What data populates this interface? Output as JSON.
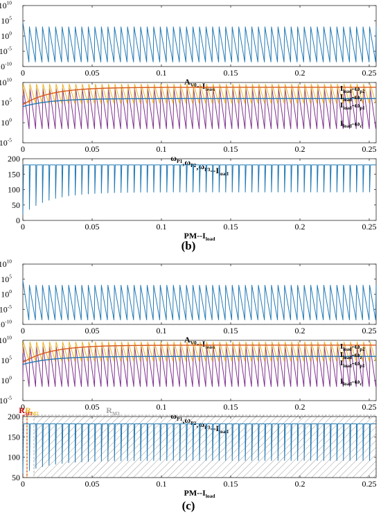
{
  "figure": {
    "panel_b_label": "(b)",
    "panel_c_label": "(c)"
  },
  "chart_data": [
    {
      "id": "b1",
      "type": "line",
      "panel": "b",
      "title": "",
      "xlabel_main": "A",
      "xlabel_sub": "V0",
      "xlabel_rest": "--I",
      "xlabel_rest_sub": "load",
      "xlim": [
        0,
        0.255
      ],
      "ylim_exp": [
        -10,
        10
      ],
      "log_scale": true,
      "x_ticks": [
        "0",
        "0.05",
        "0.1",
        "0.15",
        "0.2",
        "0.25"
      ],
      "y_ticks": [
        "10^-10",
        "10^-5",
        "10^0",
        "10^5",
        "10^10"
      ],
      "series": [
        {
          "name": "",
          "color": "#1f77b4",
          "teeth": 54,
          "start_peak_exp": 4.5,
          "peak_exp": 3,
          "min_exp": -8.5,
          "floor_end_exp": -8
        }
      ]
    },
    {
      "id": "b2",
      "type": "line",
      "panel": "b",
      "title": "",
      "xlabel_main": "ω",
      "xlabel_sub_parts": [
        "P1",
        "P2",
        "P3"
      ],
      "xlabel_rest": "--I",
      "xlabel_rest_sub": "load",
      "xlim": [
        0,
        0.255
      ],
      "ylim_exp": [
        -5,
        10
      ],
      "log_scale": true,
      "x_ticks": [
        "0",
        "0.05",
        "0.1",
        "0.15",
        "0.2",
        "0.25"
      ],
      "y_ticks": [
        "10^-5",
        "10^0",
        "10^5",
        "10^10"
      ],
      "legend": [
        {
          "main": "I",
          "sub": "load",
          "rest": "-ω",
          "rest_sub": "p2"
        },
        {
          "main": "I",
          "sub": "load",
          "rest": "-ω",
          "rest_sub": "z"
        },
        {
          "main": "I",
          "sub": "load",
          "rest": "-ω",
          "rest_sub": "p1"
        },
        {
          "main": "I",
          "sub": "load",
          "rest": "-ω",
          "rest_sub": "c"
        }
      ],
      "series": [
        {
          "name": "",
          "color": "#7e2f8e",
          "role": "omega_c",
          "teeth": 54,
          "peak_exp": 8.5,
          "min_exp": -1.5
        },
        {
          "name": "",
          "color": "#edb120",
          "role": "omega_p2",
          "teeth": 54,
          "peak_exp": 9.6,
          "min_exp": 4.8
        },
        {
          "name": "",
          "color": "#1f77b4",
          "role": "omega_p1",
          "start_exp": 4.0,
          "end_exp": 6.0
        },
        {
          "name": "",
          "color": "#d95319",
          "role": "omega_z",
          "start_exp": 4.5,
          "end_exp": 8.8
        }
      ]
    },
    {
      "id": "b3",
      "type": "line",
      "panel": "b",
      "title": "",
      "xlabel_main": "PM--I",
      "xlabel_sub": "load",
      "xlim": [
        0,
        0.255
      ],
      "ylim": [
        0,
        200
      ],
      "x_ticks": [
        "0",
        "0.05",
        "0.1",
        "0.15",
        "0.2",
        "0.25"
      ],
      "y_ticks": [
        "0",
        "50",
        "100",
        "150",
        "200"
      ],
      "series": [
        {
          "name": "",
          "color": "#1f77b4",
          "teeth": 54,
          "top": 180,
          "dip_start": 20,
          "dip_end": 92
        }
      ]
    },
    {
      "id": "c1",
      "type": "line",
      "panel": "c",
      "title": "",
      "xlabel_main": "A",
      "xlabel_sub": "V0",
      "xlabel_rest": "--I",
      "xlabel_rest_sub": "load",
      "xlim": [
        0,
        0.255
      ],
      "ylim_exp": [
        -10,
        10
      ],
      "log_scale": true,
      "x_ticks": [
        "0",
        "0.05",
        "0.1",
        "0.15",
        "0.2",
        "0.25"
      ],
      "y_ticks": [
        "10^-10",
        "10^-5",
        "10^0",
        "10^5",
        "10^10"
      ],
      "series": [
        {
          "name": "",
          "color": "#1f77b4",
          "teeth": 54,
          "start_peak_exp": 4.5,
          "peak_exp": 3,
          "min_exp": -8.5,
          "floor_end_exp": -8
        }
      ]
    },
    {
      "id": "c2",
      "type": "line",
      "panel": "c",
      "title": "",
      "xlabel_main": "ω",
      "xlabel_sub_parts": [
        "P1",
        "P2",
        "P3"
      ],
      "xlabel_rest": "--I",
      "xlabel_rest_sub": "load",
      "xlim": [
        0,
        0.255
      ],
      "ylim_exp": [
        -5,
        10
      ],
      "log_scale": true,
      "x_ticks": [
        "0",
        "0.05",
        "0.1",
        "0.15",
        "0.2",
        "0.25"
      ],
      "y_ticks": [
        "10^-5",
        "10^0",
        "10^5",
        "10^10"
      ],
      "legend": [
        {
          "main": "I",
          "sub": "load",
          "rest": "-ω",
          "rest_sub": "p2"
        },
        {
          "main": "I",
          "sub": "load",
          "rest": "-ω",
          "rest_sub": "z"
        },
        {
          "main": "I",
          "sub": "load",
          "rest": "-ω",
          "rest_sub": "p1"
        },
        {
          "main": "I",
          "sub": "load",
          "rest": "-ω",
          "rest_sub": "c"
        }
      ],
      "series": [
        {
          "name": "",
          "color": "#7e2f8e",
          "role": "omega_c",
          "teeth": 54,
          "peak_exp": 8.5,
          "min_exp": -1.5
        },
        {
          "name": "",
          "color": "#edb120",
          "role": "omega_p2",
          "teeth": 54,
          "peak_exp": 9.6,
          "min_exp": 4.8
        },
        {
          "name": "",
          "color": "#1f77b4",
          "role": "omega_p1",
          "start_exp": 4.0,
          "end_exp": 6.0
        },
        {
          "name": "",
          "color": "#d95319",
          "role": "omega_z",
          "start_exp": 4.5,
          "end_exp": 8.8
        }
      ]
    },
    {
      "id": "c3",
      "type": "line",
      "panel": "c",
      "title": "",
      "xlabel_main": "PM--I",
      "xlabel_sub": "load",
      "xlim": [
        0,
        0.255
      ],
      "ylim": [
        50,
        200
      ],
      "x_ticks": [
        "0",
        "0.05",
        "0.1",
        "0.15",
        "0.2",
        "0.25"
      ],
      "y_ticks": [
        "50",
        "100",
        "150",
        "200"
      ],
      "regions": [
        {
          "label_main": "R",
          "label_sub": "M1",
          "color": "#c00000",
          "x_range": [
            0,
            0.003
          ]
        },
        {
          "label_main": "R",
          "label_sub": "M2",
          "color": "#edb120",
          "x_range": [
            0.003,
            0.008
          ]
        },
        {
          "label_main": "R",
          "label_sub": "M3",
          "color": "#a0a0a0",
          "x_range": [
            0.008,
            0.255
          ]
        }
      ],
      "series": [
        {
          "name": "",
          "color": "#1f77b4",
          "teeth": 54,
          "top": 182,
          "dip_start": 60,
          "dip_end": 92
        }
      ]
    }
  ]
}
